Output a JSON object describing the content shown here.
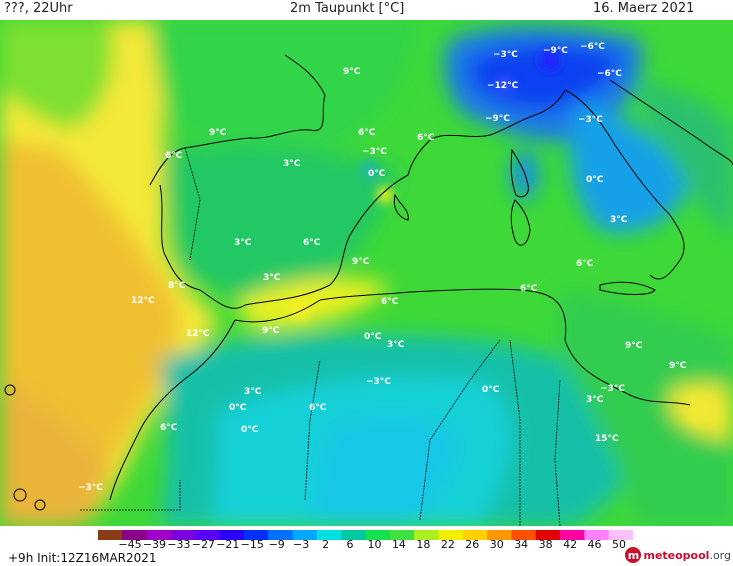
{
  "header": {
    "left": "???, 22Uhr",
    "title": "2m Taupunkt [°C]",
    "date": "16. Maerz 2021"
  },
  "footer": {
    "init": "+9h  Init:12Z16MAR2021",
    "brand_main": "meteopool",
    "brand_tld": ".org"
  },
  "colorbar": {
    "ticks": [
      "−45",
      "−39",
      "−33",
      "−27",
      "−21",
      "−15",
      "−9",
      "−3",
      "2",
      "6",
      "10",
      "14",
      "18",
      "22",
      "26",
      "30",
      "34",
      "38",
      "42",
      "46",
      "50"
    ],
    "colors": [
      "#8a3a16",
      "#8b008b",
      "#a000c8",
      "#7a00e0",
      "#5a00ff",
      "#2b00ff",
      "#0030ff",
      "#0070ff",
      "#00a8ff",
      "#00e0e0",
      "#00c8a0",
      "#14e050",
      "#40e040",
      "#a8f020",
      "#f0f000",
      "#ffd000",
      "#ff9800",
      "#ff5000",
      "#e00000",
      "#ff00a0",
      "#ff80ff",
      "#ffc0ff"
    ]
  },
  "labels": [
    {
      "text": "9°C"
    },
    {
      "text": "−3°C"
    },
    {
      "text": "−9°C"
    },
    {
      "text": "−6°C"
    },
    {
      "text": "−12°C"
    },
    {
      "text": "−6°C"
    },
    {
      "text": "9°C"
    },
    {
      "text": "6°C"
    },
    {
      "text": "6°C"
    },
    {
      "text": "−9°C"
    },
    {
      "text": "−3°C"
    },
    {
      "text": "6°C"
    },
    {
      "text": "3°C"
    },
    {
      "text": "−3°C"
    },
    {
      "text": "0°C"
    },
    {
      "text": "0°C"
    },
    {
      "text": "3°C"
    },
    {
      "text": "3°C"
    },
    {
      "text": "6°C"
    },
    {
      "text": "9°C"
    },
    {
      "text": "3°C"
    },
    {
      "text": "6°C"
    },
    {
      "text": "8°C"
    },
    {
      "text": "12°C"
    },
    {
      "text": "6°C"
    },
    {
      "text": "6°C"
    },
    {
      "text": "12°C"
    },
    {
      "text": "9°C"
    },
    {
      "text": "0°C"
    },
    {
      "text": "3°C"
    },
    {
      "text": "9°C"
    },
    {
      "text": "9°C"
    },
    {
      "text": "−3°C"
    },
    {
      "text": "3°C"
    },
    {
      "text": "0°C"
    },
    {
      "text": "0°C"
    },
    {
      "text": "6°C"
    },
    {
      "text": "−3°C"
    },
    {
      "text": "3°C"
    },
    {
      "text": "6°C"
    },
    {
      "text": "0°C"
    },
    {
      "text": "15°C"
    },
    {
      "text": "−3°C"
    }
  ]
}
